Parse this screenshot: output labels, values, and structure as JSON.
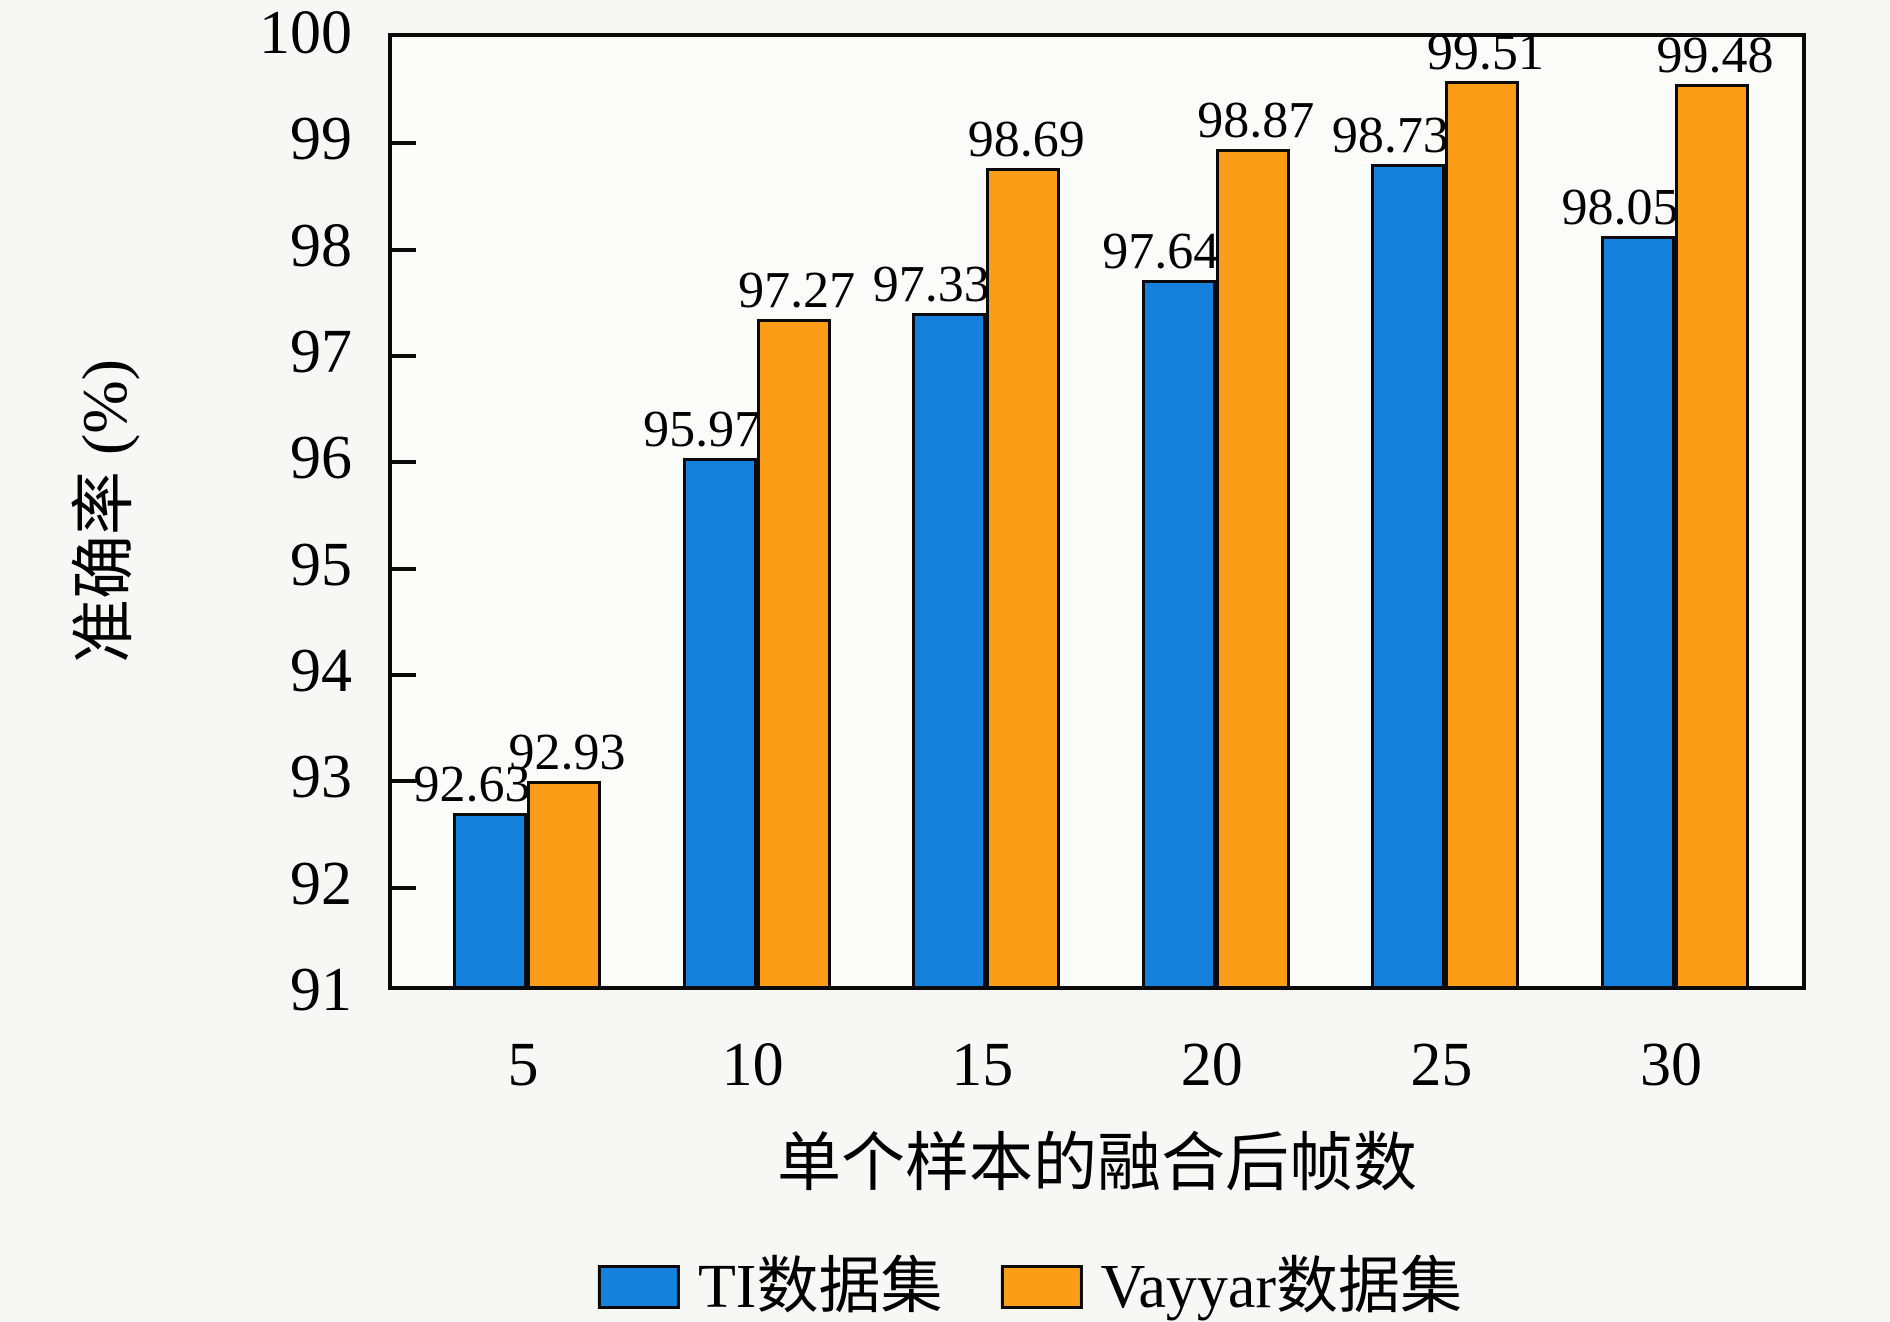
{
  "chart_data": {
    "type": "bar",
    "title": "",
    "xlabel": "单个样本的融合后帧数",
    "ylabel": "准确率 (%)",
    "categories": [
      "5",
      "10",
      "15",
      "20",
      "25",
      "30"
    ],
    "series": [
      {
        "name": "TI数据集",
        "color": "#1581DC",
        "values": [
          92.63,
          95.97,
          97.33,
          97.64,
          98.73,
          98.05
        ]
      },
      {
        "name": "Vayyar数据集",
        "color": "#FB9D16",
        "values": [
          92.93,
          97.27,
          98.69,
          98.87,
          99.51,
          99.48
        ]
      }
    ],
    "value_labels": [
      "92.63",
      "92.93",
      "95.97",
      "97.27",
      "97.33",
      "98.69",
      "97.64",
      "98.87",
      "98.73",
      "99.51",
      "98.05",
      "99.48"
    ],
    "ylim": [
      91,
      100
    ],
    "yticks": [
      "91",
      "92",
      "93",
      "94",
      "95",
      "96",
      "97",
      "98",
      "99",
      "100"
    ],
    "grid": false,
    "legend_position": "bottom",
    "bar_edge_color": "#0a0a0a",
    "tick_direction": "in"
  }
}
